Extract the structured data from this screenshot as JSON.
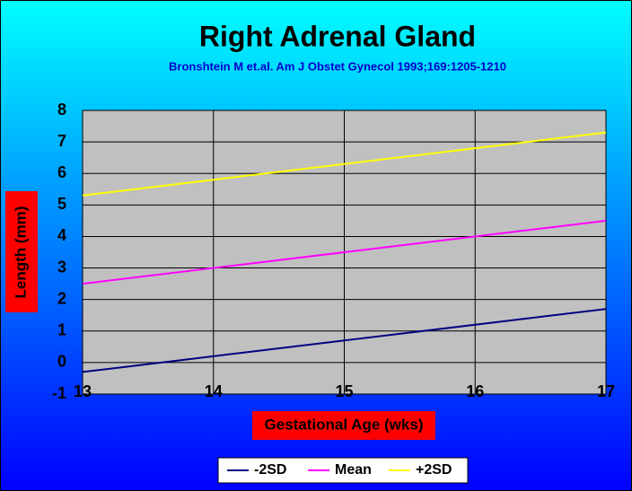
{
  "chart_data": {
    "type": "line",
    "title": "Right Adrenal Gland",
    "subtitle": "Bronshtein M et.al. Am J Obstet Gynecol 1993;169:1205-1210",
    "x_label": "Gestational Age (wks)",
    "y_label": "Length (mm)",
    "x": [
      13,
      14,
      15,
      16,
      17
    ],
    "xlim": [
      13,
      17
    ],
    "xticks": [
      13,
      14,
      15,
      16,
      17
    ],
    "ylim": [
      -1,
      8
    ],
    "yticks": [
      -1,
      0,
      1,
      2,
      3,
      4,
      5,
      6,
      7,
      8
    ],
    "grid": true,
    "legend": "bottom",
    "series": [
      {
        "name": "-2SD",
        "color": "#000080",
        "values": [
          -0.3,
          0.2,
          0.7,
          1.2,
          1.7
        ]
      },
      {
        "name": "Mean",
        "color": "#ff00ff",
        "values": [
          2.5,
          3.0,
          3.5,
          4.0,
          4.5
        ]
      },
      {
        "name": "+2SD",
        "color": "#ffff00",
        "values": [
          5.3,
          5.8,
          6.3,
          6.8,
          7.3
        ]
      }
    ]
  }
}
